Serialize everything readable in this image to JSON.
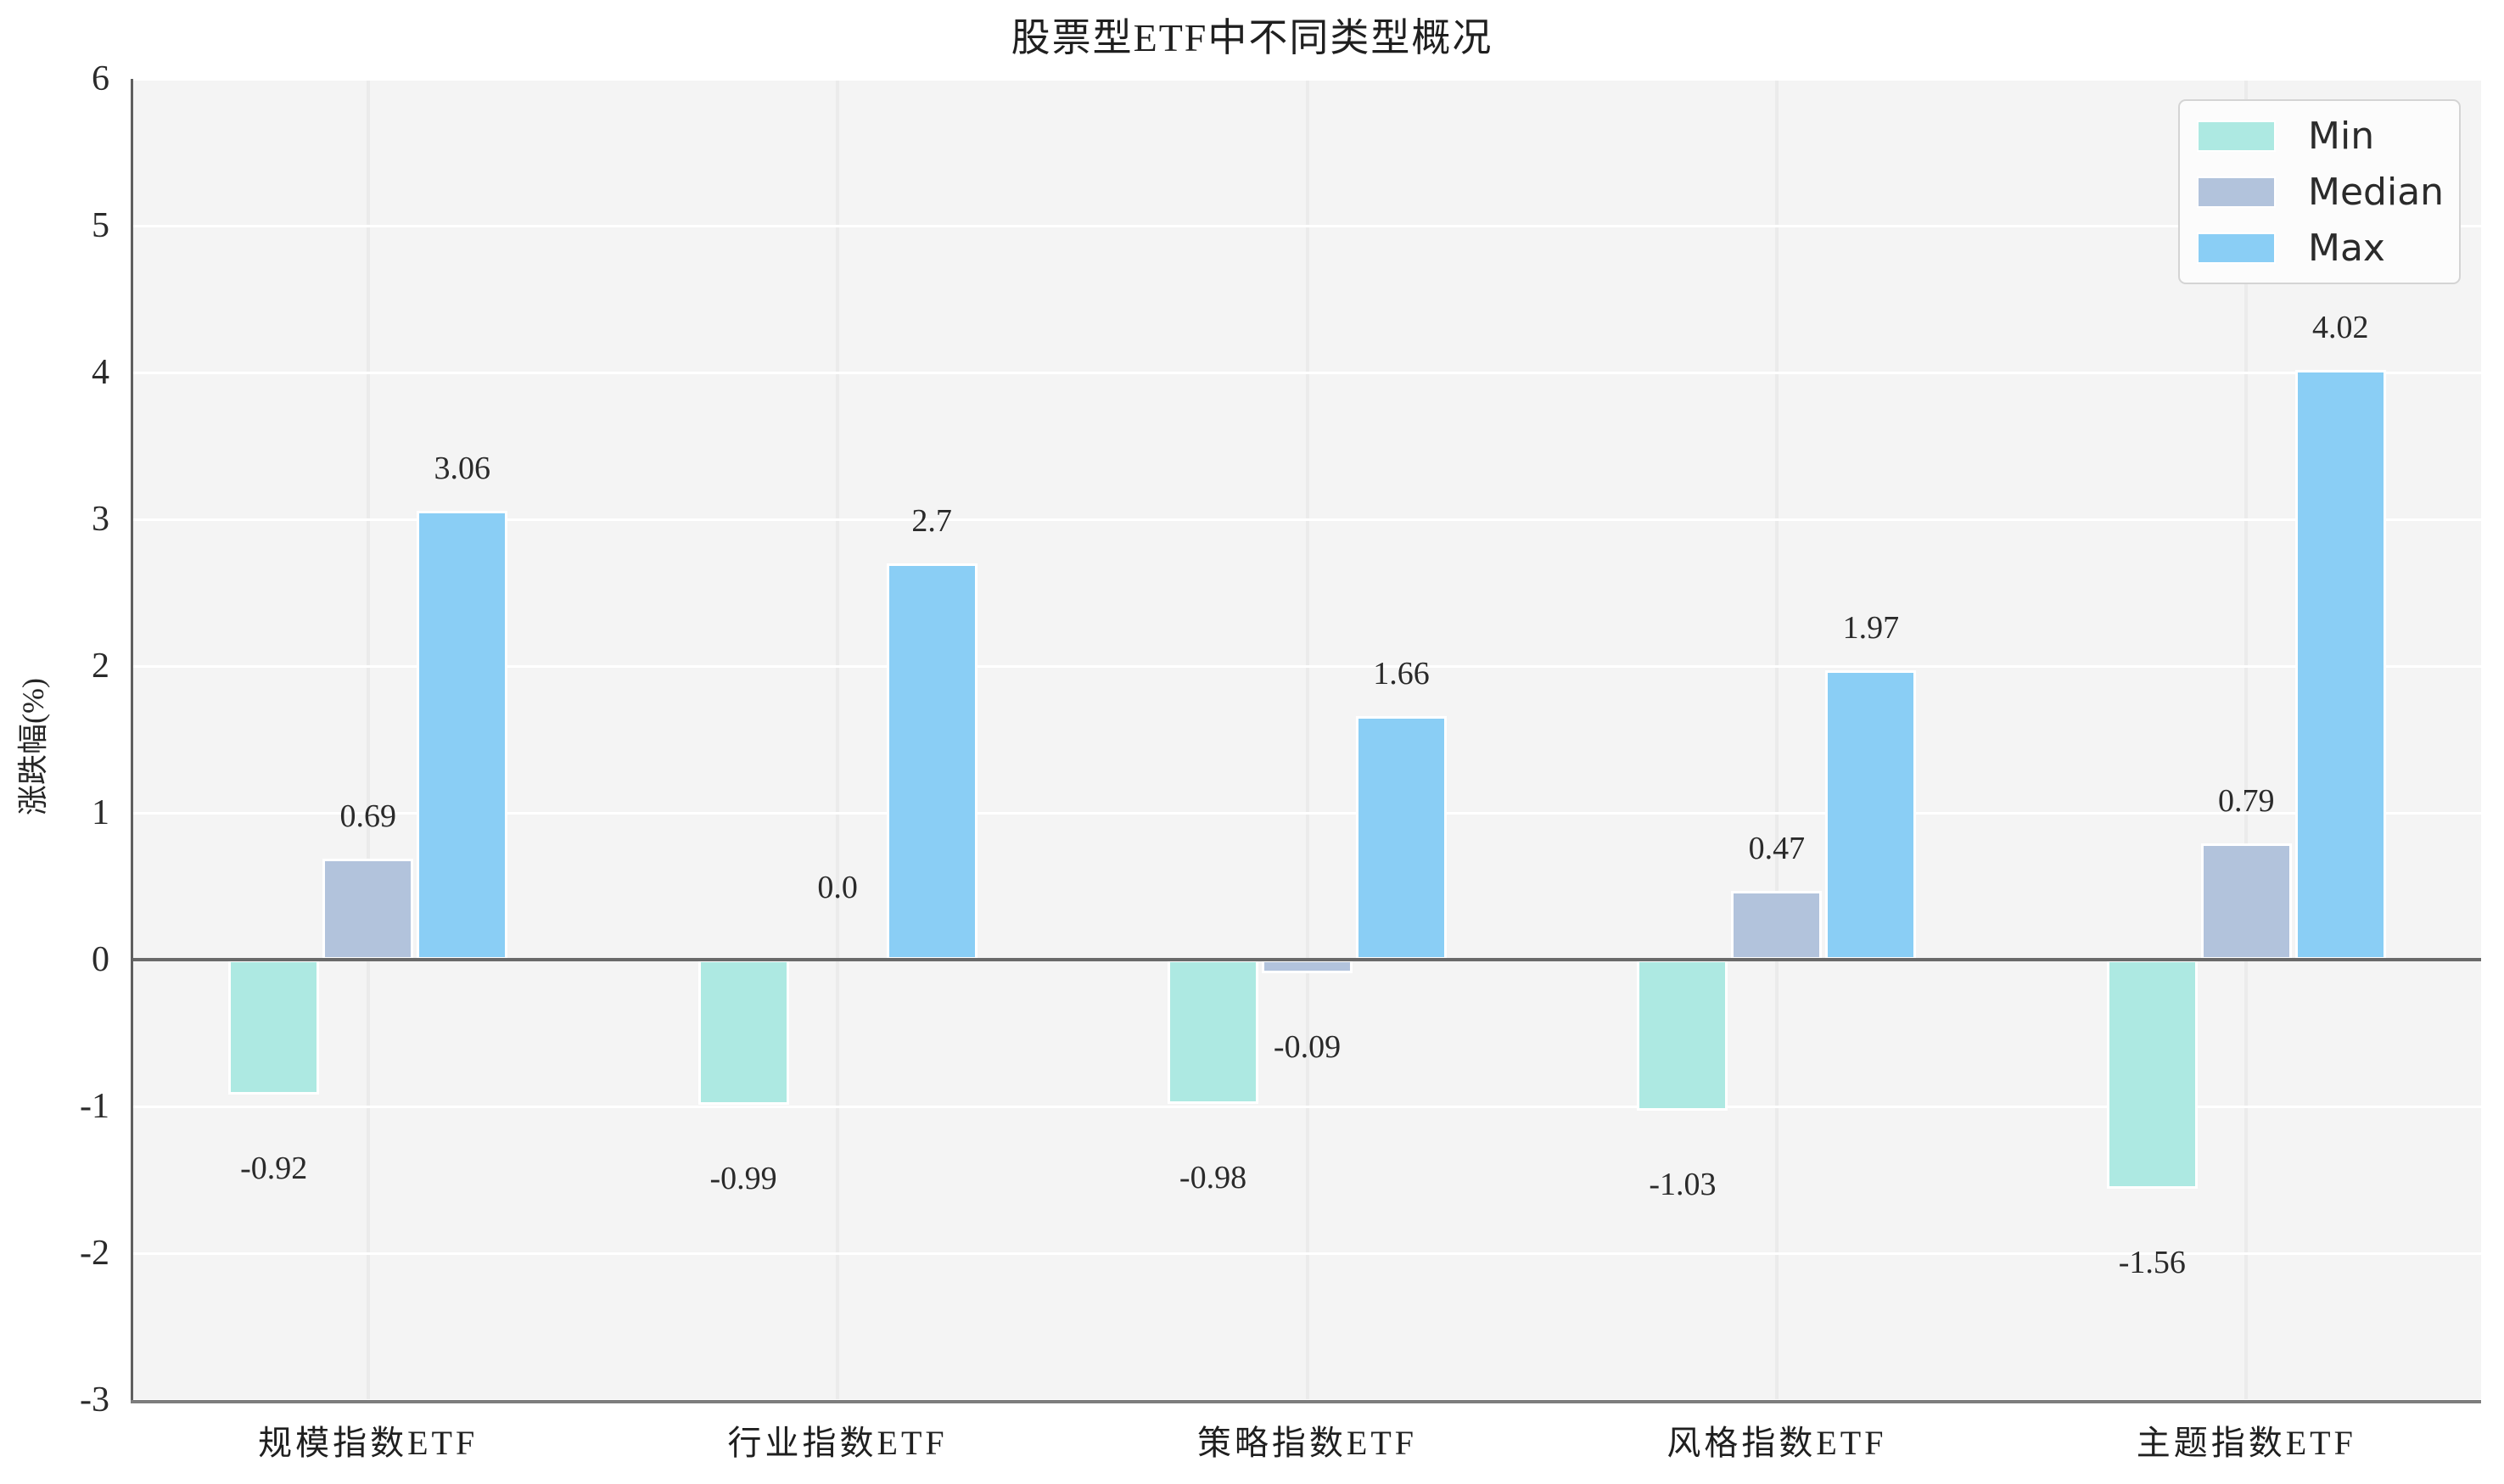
{
  "chart_data": {
    "type": "bar",
    "title": "股票型ETF中不同类型概况",
    "ylabel": "涨跌幅(%)",
    "xlabel": "",
    "categories": [
      "规模指数ETF",
      "行业指数ETF",
      "策略指数ETF",
      "风格指数ETF",
      "主题指数ETF"
    ],
    "series": [
      {
        "name": "Min",
        "color": "#ade9e2",
        "values": [
          -0.92,
          -0.99,
          -0.98,
          -1.03,
          -1.56
        ],
        "labels": [
          "-0.92",
          "-0.99",
          "-0.98",
          "-1.03",
          "-1.56"
        ]
      },
      {
        "name": "Median",
        "color": "#b2c3dc",
        "values": [
          0.69,
          0.0,
          -0.09,
          0.47,
          0.79
        ],
        "labels": [
          "0.69",
          "0.0",
          "-0.09",
          "0.47",
          "0.79"
        ]
      },
      {
        "name": "Max",
        "color": "#8acef5",
        "values": [
          3.06,
          2.7,
          1.66,
          1.97,
          4.02
        ],
        "labels": [
          "3.06",
          "2.7",
          "1.66",
          "1.97",
          "4.02"
        ]
      }
    ],
    "ylim": [
      -3,
      6
    ],
    "yticks": [
      6,
      5,
      4,
      3,
      2,
      1,
      0,
      -1,
      -2,
      -3
    ],
    "ytick_labels": [
      "6",
      "5",
      "4",
      "3",
      "2",
      "1",
      "0",
      "-1",
      "-2",
      "-3"
    ],
    "legend": {
      "position": "upper right",
      "entries": [
        "Min",
        "Median",
        "Max"
      ]
    },
    "grid": {
      "horizontal_color": "#ffffff",
      "vertical_color": "#ebebeb",
      "on": true
    },
    "plot_background": "#f4f4f4",
    "axis_color": "#696969"
  }
}
